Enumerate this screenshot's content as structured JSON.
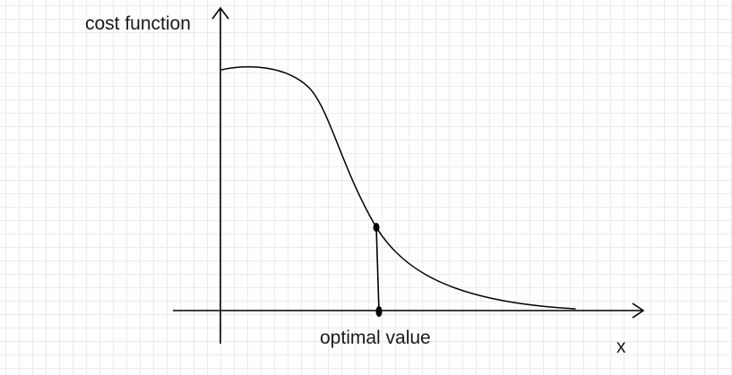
{
  "labels": {
    "y_axis": "cost function",
    "x_axis": "x",
    "marker": "optimal value"
  },
  "colors": {
    "ink": "#000000",
    "grid": "#ebebeb",
    "background": "#ffffff"
  }
}
